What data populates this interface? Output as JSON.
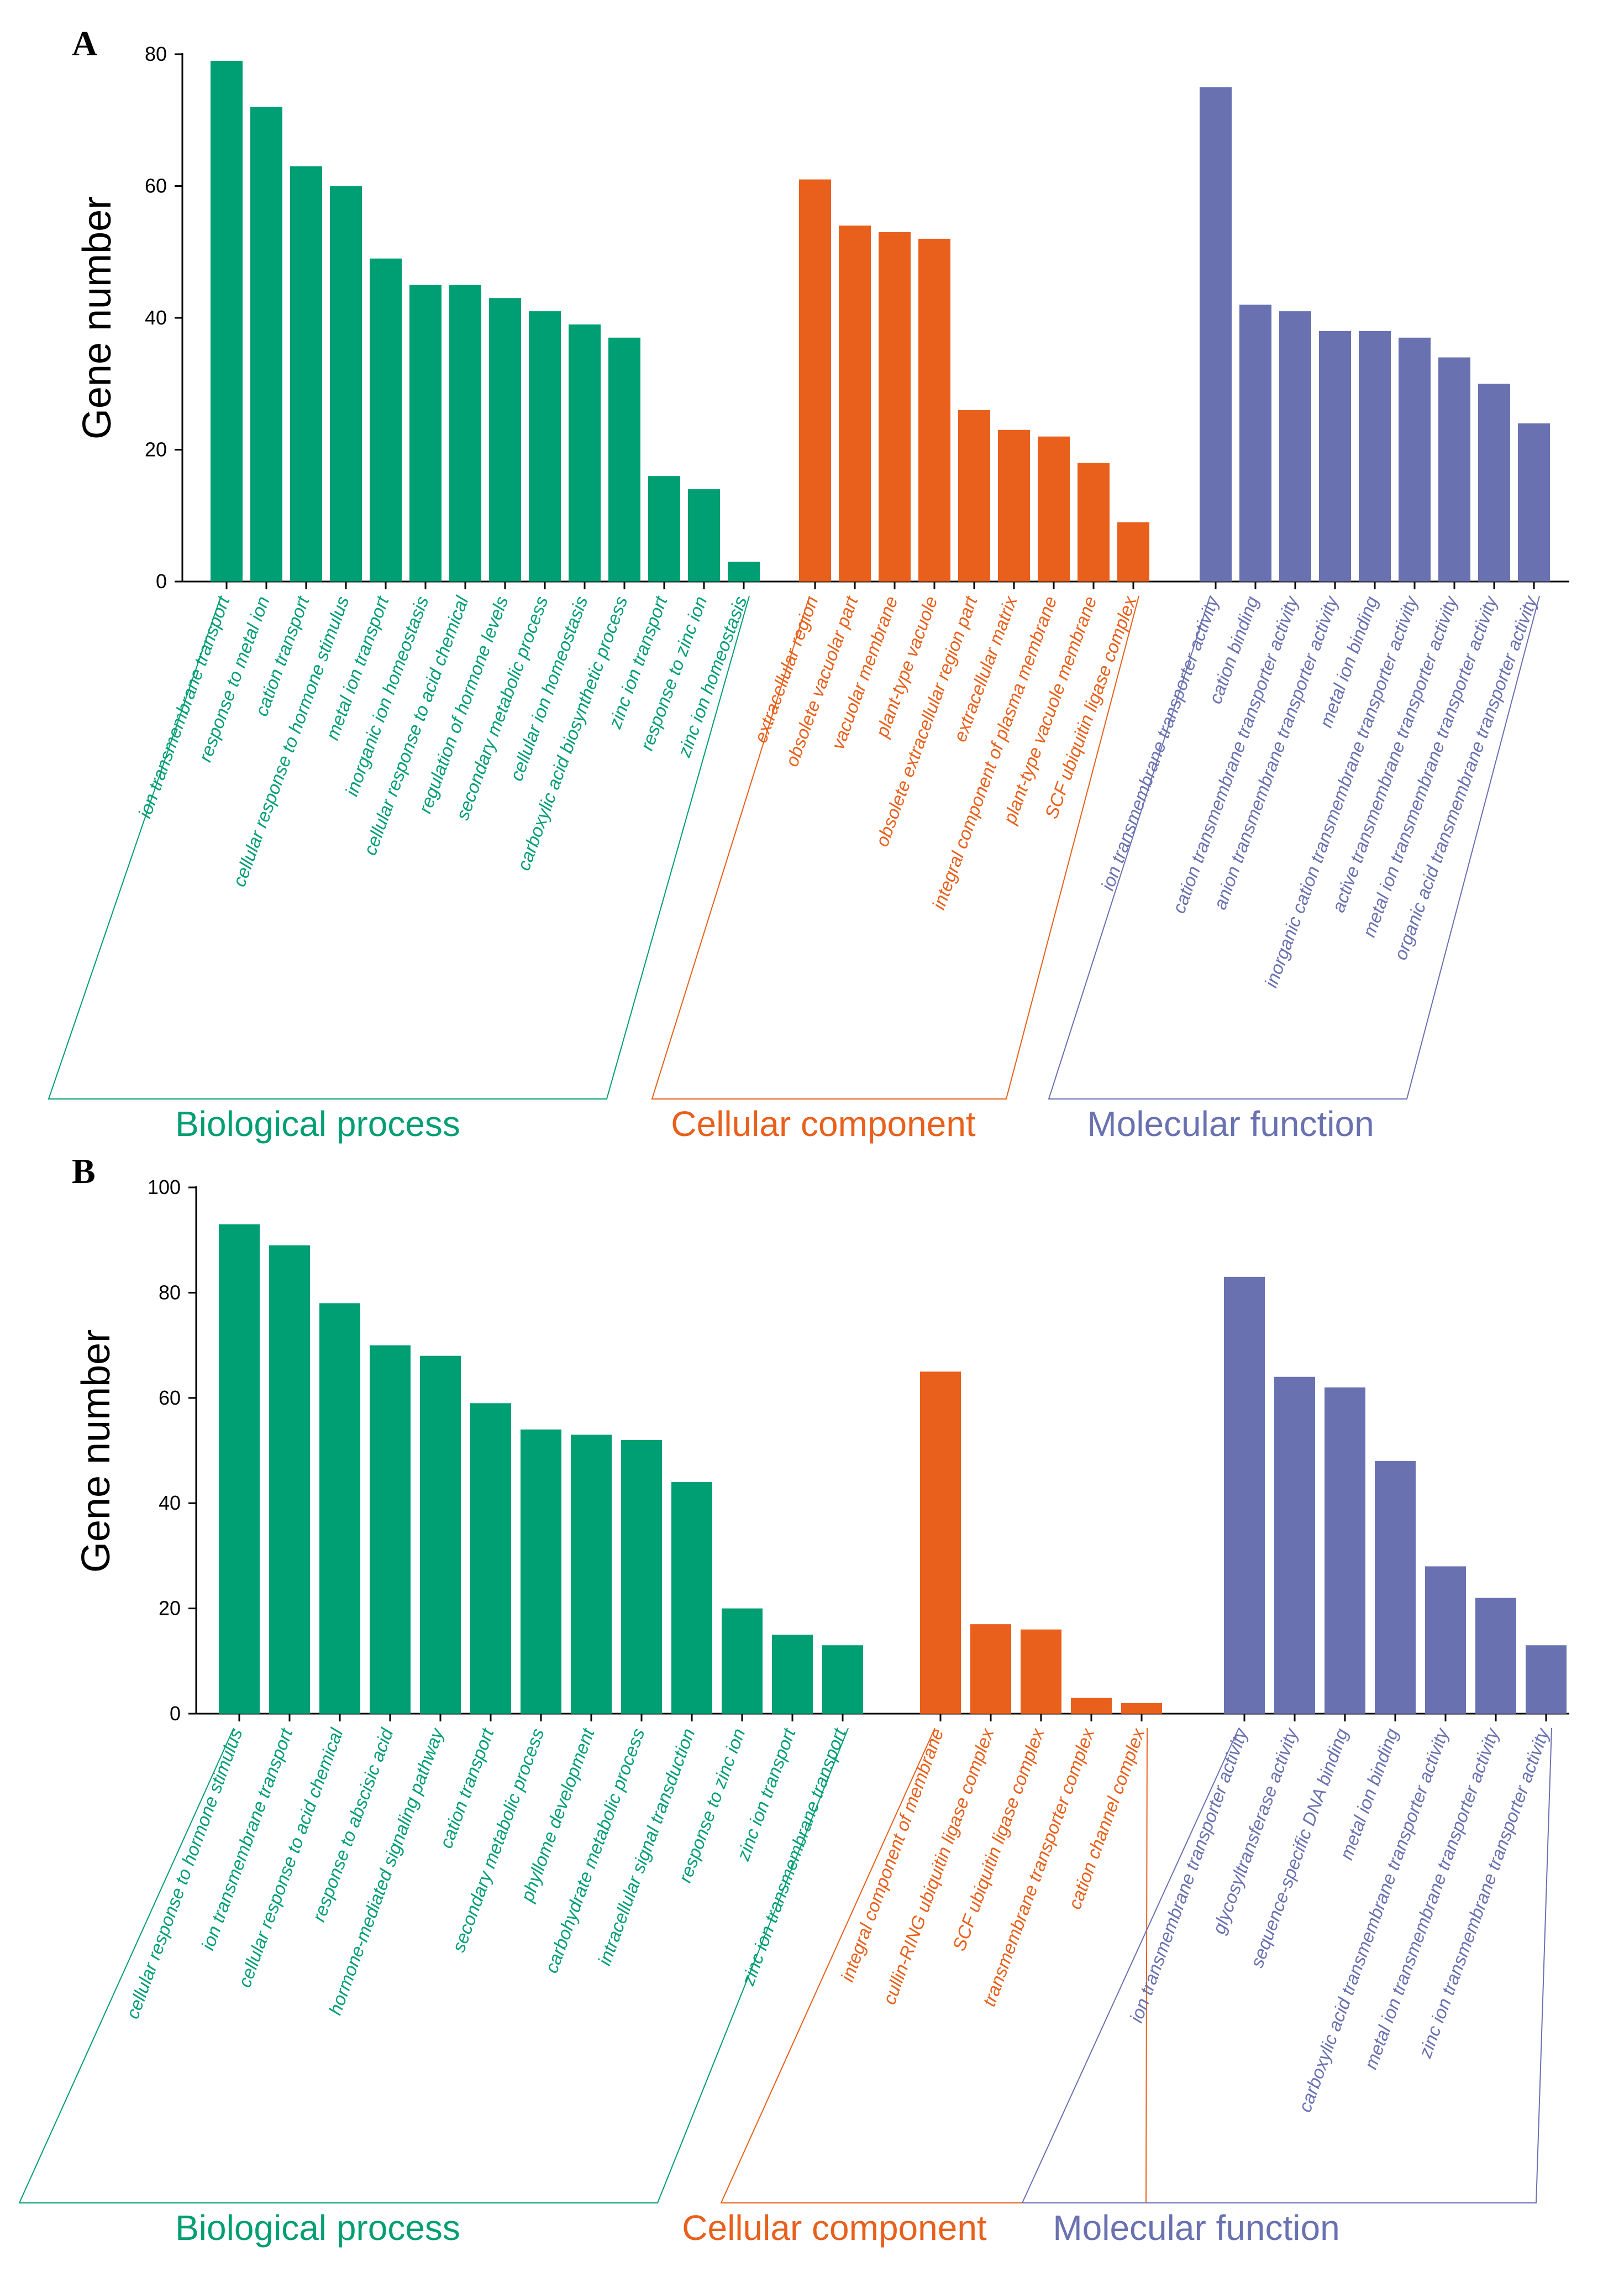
{
  "chart_data": [
    {
      "type": "bar",
      "panel": "A",
      "ylabel": "Gene number",
      "ylim": [
        0,
        80
      ],
      "yticks": [
        "0",
        "20",
        "40",
        "60",
        "80"
      ],
      "groups": [
        {
          "name": "Biological process",
          "color": "#009E73",
          "categories": [
            "ion transmembrane transport",
            "response to metal ion",
            "cation transport",
            "cellular response to hormone stimulus",
            "metal ion transport",
            "inorganic ion homeostasis",
            "cellular response to acid chemical",
            "regulation of hormone levels",
            "secondary metabolic process",
            "cellular ion homeostasis",
            "carboxylic acid biosynthetic process",
            "zinc ion transport",
            "response to zinc ion",
            "zinc ion homeostasis"
          ],
          "values": [
            79,
            72,
            63,
            60,
            49,
            45,
            45,
            43,
            41,
            39,
            37,
            16,
            14,
            3
          ]
        },
        {
          "name": "Cellular component",
          "color": "#E8601C",
          "categories": [
            "extracellular region",
            "obsolete vacuolar part",
            "vacuolar membrane",
            "plant-type vacuole",
            "obsolete extracellular region part",
            "extracellular matrix",
            "integral component of plasma membrane",
            "plant-type vacuole membrane",
            "SCF ubiquitin ligase complex"
          ],
          "values": [
            61,
            54,
            53,
            52,
            26,
            23,
            22,
            18,
            9
          ]
        },
        {
          "name": "Molecular function",
          "color": "#6A71B1",
          "categories": [
            "ion transmembrane transporter activity",
            "cation binding",
            "cation transmembrane transporter activity",
            "anion transmembrane transporter activity",
            "metal ion binding",
            "inorganic cation transmembrane transporter activity",
            "active transmembrane transporter activity",
            "metal ion transmembrane transporter activity",
            "organic acid transmembrane transporter activity"
          ],
          "values": [
            75,
            42,
            41,
            38,
            38,
            37,
            34,
            30,
            24
          ]
        }
      ]
    },
    {
      "type": "bar",
      "panel": "B",
      "ylabel": "Gene number",
      "ylim": [
        0,
        100
      ],
      "yticks": [
        "0",
        "20",
        "40",
        "60",
        "80",
        "100"
      ],
      "groups": [
        {
          "name": "Biological process",
          "color": "#009E73",
          "categories": [
            "cellular response to hormone stimulus",
            "ion transmembrane transport",
            "cellular response to acid chemical",
            "response to abscisic acid",
            "hormone-mediated signaling pathway",
            "cation transport",
            "secondary metabolic process",
            "phyllome development",
            "carbohydrate metabolic process",
            "intracellular signal transduction",
            "response to zinc ion",
            "zinc ion transport",
            "zinc ion transmembrane transport"
          ],
          "values": [
            93,
            89,
            78,
            70,
            68,
            59,
            54,
            53,
            52,
            44,
            20,
            15,
            13
          ]
        },
        {
          "name": "Cellular component",
          "color": "#E8601C",
          "categories": [
            "integral component of membrane",
            "cullin-RING ubiquitin ligase complex",
            "SCF ubiquitin ligase complex",
            "transmembrane transporter complex",
            "cation channel complex"
          ],
          "values": [
            65,
            17,
            16,
            3,
            2
          ]
        },
        {
          "name": "Molecular function",
          "color": "#6A71B1",
          "categories": [
            "ion transmembrane transporter activity",
            "glycosyltransferase activity",
            "sequence-specific DNA binding",
            "metal ion binding",
            "carboxylic acid transmembrane transporter activity",
            "metal ion transmembrane transporter activity",
            "zinc ion transmembrane transporter activity"
          ],
          "values": [
            83,
            64,
            62,
            48,
            28,
            22,
            13
          ]
        }
      ]
    }
  ]
}
